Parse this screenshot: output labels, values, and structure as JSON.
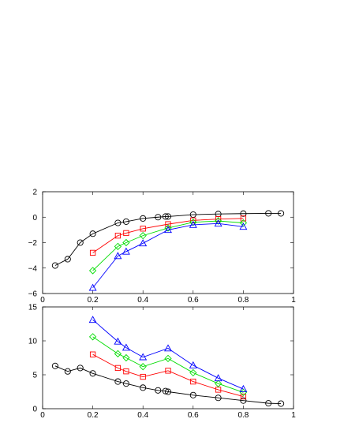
{
  "chart_data": [
    {
      "type": "line",
      "title": "",
      "xlabel": "",
      "ylabel": "",
      "xlim": [
        0,
        1
      ],
      "ylim": [
        -6,
        2
      ],
      "grid": false,
      "legend": "none",
      "xticks": [
        0,
        0.2,
        0.4,
        0.6,
        0.8,
        1
      ],
      "xtick_labels": [
        "0",
        "0.2",
        "0.4",
        "0.6",
        "0.8",
        "1"
      ],
      "yticks": [
        -6,
        -4,
        -2,
        0,
        2
      ],
      "ytick_labels": [
        "−6",
        "−4",
        "−2",
        "0",
        "2"
      ],
      "series": [
        {
          "color": "#000000",
          "marker": "circle",
          "x": [
            0.05,
            0.1,
            0.15,
            0.2,
            0.3,
            0.333,
            0.4,
            0.46,
            0.49,
            0.5,
            0.6,
            0.7,
            0.8,
            0.9,
            0.95
          ],
          "y": [
            -3.8,
            -3.3,
            -2.0,
            -1.3,
            -0.45,
            -0.35,
            -0.1,
            0.0,
            0.05,
            0.05,
            0.2,
            0.25,
            0.28,
            0.3,
            0.3
          ]
        },
        {
          "color": "#ff0000",
          "marker": "square",
          "x": [
            0.2,
            0.3,
            0.333,
            0.4,
            0.5,
            0.6,
            0.7,
            0.8
          ],
          "y": [
            -2.8,
            -1.45,
            -1.25,
            -0.9,
            -0.55,
            -0.25,
            -0.15,
            -0.1
          ]
        },
        {
          "color": "#00dd00",
          "marker": "diamond",
          "x": [
            0.2,
            0.3,
            0.333,
            0.4,
            0.5,
            0.6,
            0.7,
            0.8
          ],
          "y": [
            -4.2,
            -2.3,
            -2.0,
            -1.45,
            -0.85,
            -0.4,
            -0.3,
            -0.45
          ]
        },
        {
          "color": "#0000ff",
          "marker": "triangle",
          "x": [
            0.2,
            0.3,
            0.333,
            0.4,
            0.5,
            0.6,
            0.7,
            0.8
          ],
          "y": [
            -5.55,
            -3.05,
            -2.7,
            -2.05,
            -1.0,
            -0.6,
            -0.5,
            -0.75
          ]
        }
      ]
    },
    {
      "type": "line",
      "title": "",
      "xlabel": "",
      "ylabel": "",
      "xlim": [
        0,
        1
      ],
      "ylim": [
        0,
        15
      ],
      "grid": false,
      "legend": "none",
      "xticks": [
        0,
        0.2,
        0.4,
        0.6,
        0.8,
        1
      ],
      "xtick_labels": [
        "0",
        "0.2",
        "0.4",
        "0.6",
        "0.8",
        "1"
      ],
      "yticks": [
        0,
        5,
        10,
        15
      ],
      "ytick_labels": [
        "0",
        "5",
        "10",
        "15"
      ],
      "series": [
        {
          "color": "#000000",
          "marker": "circle",
          "x": [
            0.05,
            0.1,
            0.15,
            0.2,
            0.3,
            0.333,
            0.4,
            0.46,
            0.49,
            0.5,
            0.6,
            0.7,
            0.8,
            0.9,
            0.95
          ],
          "y": [
            6.3,
            5.5,
            6.0,
            5.2,
            4.0,
            3.7,
            3.1,
            2.7,
            2.6,
            2.5,
            2.0,
            1.6,
            1.2,
            0.8,
            0.75
          ]
        },
        {
          "color": "#ff0000",
          "marker": "square",
          "x": [
            0.2,
            0.3,
            0.333,
            0.4,
            0.5,
            0.6,
            0.7,
            0.8
          ],
          "y": [
            8.0,
            6.0,
            5.5,
            4.7,
            5.6,
            4.0,
            2.8,
            1.8
          ]
        },
        {
          "color": "#00dd00",
          "marker": "diamond",
          "x": [
            0.2,
            0.3,
            0.333,
            0.4,
            0.5,
            0.6,
            0.7,
            0.8
          ],
          "y": [
            10.6,
            8.1,
            7.5,
            6.2,
            7.4,
            5.3,
            3.7,
            2.4
          ]
        },
        {
          "color": "#0000ff",
          "marker": "triangle",
          "x": [
            0.2,
            0.3,
            0.333,
            0.4,
            0.5,
            0.6,
            0.7,
            0.8
          ],
          "y": [
            13.1,
            9.9,
            9.0,
            7.6,
            8.9,
            6.4,
            4.5,
            2.9
          ]
        }
      ]
    }
  ]
}
